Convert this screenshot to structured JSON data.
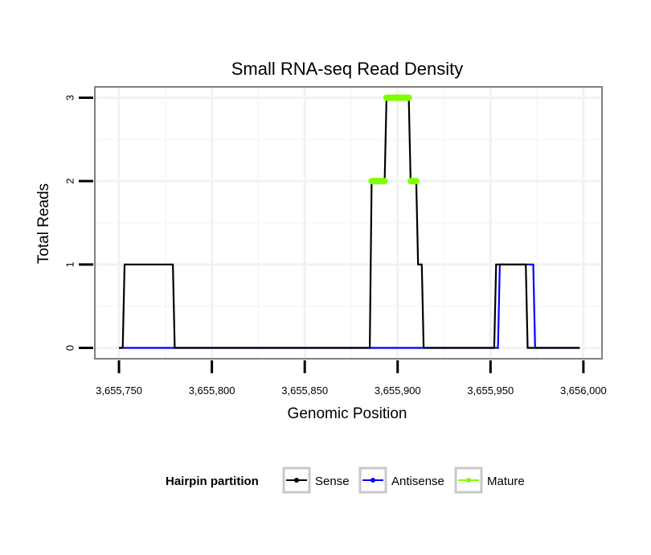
{
  "chart_data": {
    "type": "line",
    "title": "Small RNA-seq Read Density",
    "xlabel": "Genomic Position",
    "ylabel": "Total Reads",
    "xlim": [
      3655737,
      3656010
    ],
    "ylim": [
      -0.13,
      3.13
    ],
    "x_ticks": [
      3655750,
      3655800,
      3655850,
      3655900,
      3655950,
      3656000
    ],
    "x_tick_labels": [
      "3,655,750",
      "3,655,800",
      "3,655,850",
      "3,655,900",
      "3,655,950",
      "3,656,000"
    ],
    "y_ticks": [
      0,
      1,
      2,
      3
    ],
    "y_tick_labels": [
      "0",
      "1",
      "2",
      "3"
    ],
    "grid": true,
    "legend": {
      "title": "Hairpin partition",
      "position": "bottom",
      "entries": [
        {
          "name": "Sense",
          "color": "#000000"
        },
        {
          "name": "Antisense",
          "color": "#0000ff"
        },
        {
          "name": "Mature",
          "color": "#7fff00"
        }
      ]
    },
    "series": [
      {
        "name": "Antisense",
        "color": "#0000ff",
        "x": [
          3655750,
          3655954,
          3655955,
          3655973,
          3655974,
          3655998
        ],
        "y": [
          0,
          0,
          1,
          1,
          0,
          0
        ]
      },
      {
        "name": "Sense",
        "color": "#000000",
        "x": [
          3655750,
          3655752,
          3655753,
          3655779,
          3655780,
          3655885,
          3655886,
          3655893,
          3655894,
          3655906,
          3655907,
          3655910,
          3655911,
          3655913,
          3655914,
          3655952,
          3655953,
          3655969,
          3655970,
          3655998
        ],
        "y": [
          0,
          0,
          1,
          1,
          0,
          0,
          2,
          2,
          3,
          3,
          2,
          2,
          1,
          1,
          0,
          0,
          1,
          1,
          0,
          0
        ]
      },
      {
        "name": "Mature",
        "color": "#7fff00",
        "segments": [
          {
            "x": [
              3655886,
              3655893
            ],
            "y": 2
          },
          {
            "x": [
              3655894,
              3655906
            ],
            "y": 3
          },
          {
            "x": [
              3655907,
              3655910
            ],
            "y": 2
          }
        ]
      }
    ]
  }
}
